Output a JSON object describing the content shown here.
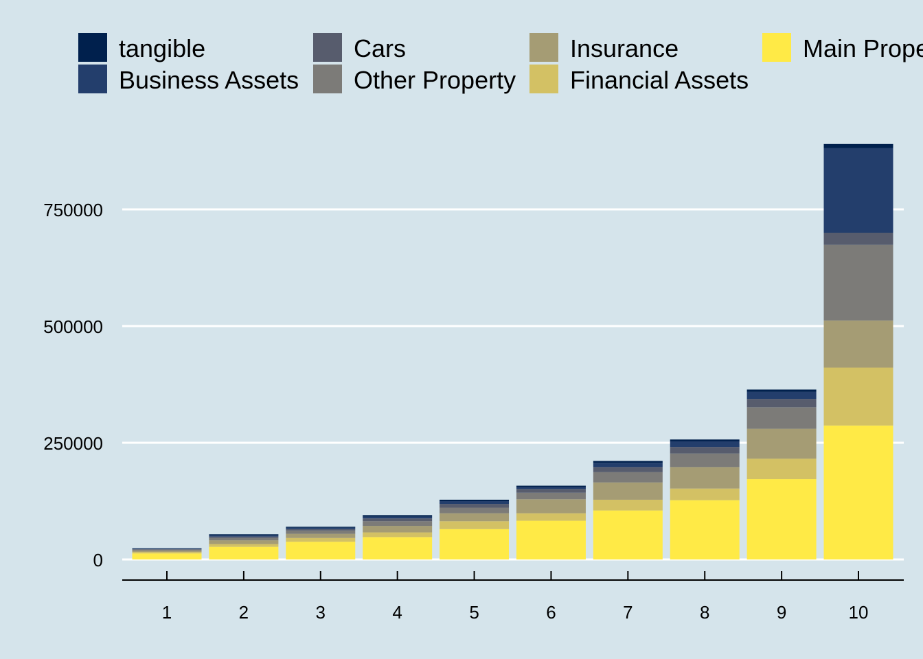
{
  "chart_data": {
    "type": "bar",
    "stacked": true,
    "title": "",
    "xlabel": "",
    "ylabel": "",
    "categories": [
      "1",
      "2",
      "3",
      "4",
      "5",
      "6",
      "7",
      "8",
      "9",
      "10"
    ],
    "ylim": [
      -40000,
      1000000
    ],
    "yticks": [
      0,
      250000,
      500000,
      750000
    ],
    "ytick_labels": [
      "0",
      "250000",
      "500000",
      "750000"
    ],
    "grid": "horizontal",
    "legend_position": "top",
    "series": [
      {
        "name": "Main Property",
        "color": "#ffea46",
        "values": [
          13000,
          27000,
          38000,
          48000,
          65000,
          83000,
          105000,
          127000,
          172000,
          287000
        ]
      },
      {
        "name": "Financial Assets",
        "color": "#d3c164",
        "values": [
          3000,
          6000,
          8000,
          10000,
          17000,
          16000,
          23000,
          25000,
          44000,
          124000
        ]
      },
      {
        "name": "Insurance",
        "color": "#a59c74",
        "values": [
          3000,
          8000,
          9000,
          14000,
          17000,
          30000,
          37000,
          46000,
          64000,
          101000
        ]
      },
      {
        "name": "Other Property",
        "color": "#7c7b78",
        "values": [
          2000,
          5000,
          7000,
          10000,
          12000,
          14000,
          22000,
          29000,
          46000,
          162000
        ]
      },
      {
        "name": "Cars",
        "color": "#575c6d",
        "values": [
          1000,
          3000,
          3000,
          6000,
          8000,
          8000,
          11000,
          14000,
          18000,
          26000
        ]
      },
      {
        "name": "Business Assets",
        "color": "#233e6c",
        "values": [
          1000,
          3000,
          3000,
          4000,
          6000,
          4000,
          9000,
          12000,
          15000,
          181000
        ]
      },
      {
        "name": "tangible",
        "color": "#00204d",
        "values": [
          1000,
          2000,
          2000,
          3000,
          3000,
          3000,
          4000,
          4000,
          5000,
          9000
        ]
      }
    ],
    "legend_order": [
      "tangible",
      "Business Assets",
      "Cars",
      "Other Property",
      "Insurance",
      "Financial Assets",
      "Main Property"
    ]
  }
}
